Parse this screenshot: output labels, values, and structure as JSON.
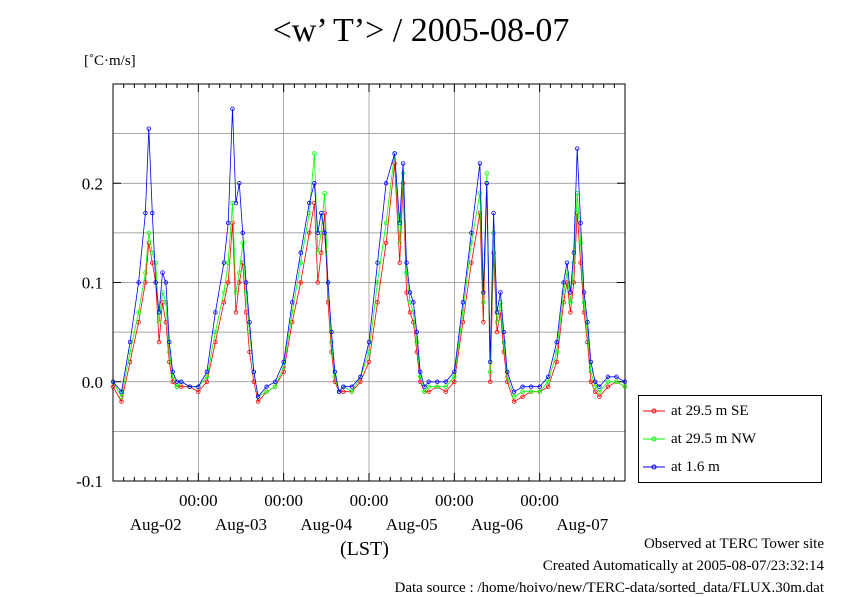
{
  "chart_data": {
    "type": "line",
    "title": "<w’ T’> / 2005-08-07",
    "ylabel": "[˚C·m/s]",
    "xlabel": "(LST)",
    "ylim": [
      -0.1,
      0.3
    ],
    "xlim_days": [
      0,
      6
    ],
    "y_ticks": [
      -0.1,
      0.0,
      0.1,
      0.2
    ],
    "y_tick_labels": [
      "-0.1",
      "0.0",
      "0.1",
      "0.2"
    ],
    "x_time_ticks": [
      "00:00",
      "00:00",
      "00:00",
      "00:00",
      "00:00"
    ],
    "x_day_labels": [
      "Aug-02",
      "Aug-03",
      "Aug-04",
      "Aug-05",
      "Aug-06",
      "Aug-07"
    ],
    "grid": true,
    "legend_position": "right-bottom",
    "series": [
      {
        "name": "at 29.5 m SE",
        "color": "#ff0000",
        "x": [
          0.0,
          0.1,
          0.2,
          0.3,
          0.38,
          0.42,
          0.46,
          0.5,
          0.54,
          0.58,
          0.62,
          0.66,
          0.7,
          0.75,
          0.8,
          0.9,
          1.0,
          1.1,
          1.2,
          1.3,
          1.35,
          1.4,
          1.44,
          1.48,
          1.52,
          1.56,
          1.6,
          1.65,
          1.7,
          1.8,
          1.9,
          2.0,
          2.1,
          2.2,
          2.3,
          2.36,
          2.4,
          2.44,
          2.48,
          2.52,
          2.56,
          2.6,
          2.65,
          2.7,
          2.8,
          2.9,
          3.0,
          3.1,
          3.2,
          3.3,
          3.36,
          3.4,
          3.44,
          3.48,
          3.52,
          3.56,
          3.6,
          3.65,
          3.7,
          3.8,
          3.9,
          4.0,
          4.1,
          4.2,
          4.3,
          4.34,
          4.38,
          4.42,
          4.46,
          4.5,
          4.54,
          4.58,
          4.62,
          4.7,
          4.8,
          4.9,
          5.0,
          5.1,
          5.2,
          5.28,
          5.32,
          5.36,
          5.4,
          5.44,
          5.48,
          5.52,
          5.56,
          5.6,
          5.65,
          5.7,
          5.8,
          5.9,
          6.0
        ],
        "y": [
          -0.005,
          -0.02,
          0.02,
          0.06,
          0.1,
          0.14,
          0.12,
          0.1,
          0.04,
          0.08,
          0.06,
          0.02,
          0.0,
          -0.005,
          -0.005,
          -0.005,
          -0.01,
          0.0,
          0.04,
          0.08,
          0.1,
          0.16,
          0.07,
          0.1,
          0.12,
          0.07,
          0.03,
          0.0,
          -0.02,
          -0.01,
          -0.005,
          0.01,
          0.06,
          0.1,
          0.15,
          0.18,
          0.1,
          0.13,
          0.17,
          0.08,
          0.03,
          0.0,
          -0.01,
          -0.01,
          -0.01,
          0.0,
          0.02,
          0.08,
          0.14,
          0.22,
          0.12,
          0.2,
          0.09,
          0.07,
          0.06,
          0.03,
          0.0,
          -0.01,
          -0.01,
          -0.005,
          -0.01,
          0.0,
          0.06,
          0.12,
          0.17,
          0.06,
          0.2,
          0.0,
          0.13,
          0.05,
          0.07,
          0.03,
          0.0,
          -0.02,
          -0.015,
          -0.01,
          -0.01,
          -0.005,
          0.02,
          0.08,
          0.1,
          0.07,
          0.1,
          0.17,
          0.12,
          0.07,
          0.04,
          0.0,
          -0.01,
          -0.015,
          -0.005,
          0.0,
          -0.005
        ]
      },
      {
        "name": "at 29.5 m NW",
        "color": "#00ff00",
        "x": [
          0.0,
          0.1,
          0.2,
          0.3,
          0.38,
          0.42,
          0.46,
          0.5,
          0.54,
          0.58,
          0.62,
          0.66,
          0.7,
          0.75,
          0.8,
          0.9,
          1.0,
          1.1,
          1.2,
          1.3,
          1.35,
          1.4,
          1.44,
          1.48,
          1.52,
          1.56,
          1.6,
          1.65,
          1.7,
          1.8,
          1.9,
          2.0,
          2.1,
          2.2,
          2.3,
          2.36,
          2.4,
          2.44,
          2.48,
          2.52,
          2.56,
          2.6,
          2.65,
          2.7,
          2.8,
          2.9,
          3.0,
          3.1,
          3.2,
          3.3,
          3.36,
          3.4,
          3.44,
          3.48,
          3.52,
          3.56,
          3.6,
          3.65,
          3.7,
          3.8,
          3.9,
          4.0,
          4.1,
          4.2,
          4.3,
          4.34,
          4.38,
          4.42,
          4.46,
          4.5,
          4.54,
          4.58,
          4.62,
          4.7,
          4.8,
          4.9,
          5.0,
          5.1,
          5.2,
          5.28,
          5.32,
          5.36,
          5.4,
          5.44,
          5.48,
          5.52,
          5.56,
          5.6,
          5.65,
          5.7,
          5.8,
          5.9,
          6.0
        ],
        "y": [
          0.0,
          -0.015,
          0.03,
          0.07,
          0.11,
          0.15,
          0.13,
          0.12,
          0.06,
          0.09,
          0.08,
          0.03,
          0.005,
          -0.005,
          0.0,
          -0.005,
          -0.005,
          0.005,
          0.05,
          0.09,
          0.12,
          0.18,
          0.09,
          0.11,
          0.14,
          0.09,
          0.05,
          0.01,
          -0.015,
          -0.01,
          -0.005,
          0.015,
          0.07,
          0.12,
          0.17,
          0.23,
          0.13,
          0.15,
          0.19,
          0.1,
          0.04,
          0.005,
          -0.01,
          -0.005,
          -0.01,
          0.005,
          0.03,
          0.1,
          0.16,
          0.23,
          0.14,
          0.21,
          0.11,
          0.08,
          0.07,
          0.04,
          0.005,
          -0.01,
          -0.005,
          -0.005,
          -0.005,
          0.005,
          0.07,
          0.14,
          0.19,
          0.08,
          0.21,
          0.01,
          0.15,
          0.06,
          0.08,
          0.04,
          0.005,
          -0.015,
          -0.01,
          -0.01,
          -0.01,
          0.0,
          0.03,
          0.09,
          0.11,
          0.08,
          0.12,
          0.19,
          0.14,
          0.08,
          0.05,
          0.01,
          -0.005,
          -0.01,
          0.0,
          0.0,
          -0.005
        ]
      },
      {
        "name": "at 1.6 m",
        "color": "#0000ff",
        "x": [
          0.0,
          0.1,
          0.2,
          0.3,
          0.38,
          0.42,
          0.46,
          0.5,
          0.54,
          0.58,
          0.62,
          0.66,
          0.7,
          0.75,
          0.8,
          0.9,
          1.0,
          1.1,
          1.2,
          1.3,
          1.35,
          1.4,
          1.44,
          1.48,
          1.52,
          1.56,
          1.6,
          1.65,
          1.7,
          1.8,
          1.9,
          2.0,
          2.1,
          2.2,
          2.3,
          2.36,
          2.4,
          2.44,
          2.48,
          2.52,
          2.56,
          2.6,
          2.65,
          2.7,
          2.8,
          2.9,
          3.0,
          3.1,
          3.2,
          3.3,
          3.36,
          3.4,
          3.44,
          3.48,
          3.52,
          3.56,
          3.6,
          3.65,
          3.7,
          3.8,
          3.9,
          4.0,
          4.1,
          4.2,
          4.3,
          4.34,
          4.38,
          4.42,
          4.46,
          4.5,
          4.54,
          4.58,
          4.62,
          4.7,
          4.8,
          4.9,
          5.0,
          5.1,
          5.2,
          5.28,
          5.32,
          5.36,
          5.4,
          5.44,
          5.48,
          5.52,
          5.56,
          5.6,
          5.65,
          5.7,
          5.8,
          5.9,
          6.0
        ],
        "y": [
          0.0,
          -0.01,
          0.04,
          0.1,
          0.17,
          0.255,
          0.17,
          0.1,
          0.07,
          0.11,
          0.1,
          0.04,
          0.01,
          0.0,
          0.0,
          -0.005,
          -0.005,
          0.01,
          0.07,
          0.12,
          0.16,
          0.275,
          0.18,
          0.2,
          0.15,
          0.1,
          0.06,
          0.01,
          -0.015,
          -0.005,
          0.0,
          0.02,
          0.08,
          0.13,
          0.18,
          0.2,
          0.15,
          0.17,
          0.15,
          0.1,
          0.05,
          0.01,
          -0.01,
          -0.005,
          -0.005,
          0.005,
          0.04,
          0.12,
          0.2,
          0.23,
          0.16,
          0.22,
          0.12,
          0.09,
          0.08,
          0.05,
          0.01,
          -0.005,
          0.0,
          0.0,
          0.0,
          0.01,
          0.08,
          0.15,
          0.22,
          0.09,
          0.2,
          0.02,
          0.17,
          0.07,
          0.09,
          0.05,
          0.01,
          -0.01,
          -0.005,
          -0.005,
          -0.005,
          0.005,
          0.04,
          0.1,
          0.12,
          0.09,
          0.13,
          0.235,
          0.16,
          0.09,
          0.06,
          0.02,
          0.0,
          -0.005,
          0.005,
          0.005,
          0.0
        ]
      }
    ]
  },
  "footer": {
    "observed": "Observed at TERC Tower site",
    "created": "Created Automatically at 2005-08-07/23:32:14",
    "source": "Data source : /home/hoivo/new/TERC-data/sorted_data/FLUX.30m.dat"
  }
}
